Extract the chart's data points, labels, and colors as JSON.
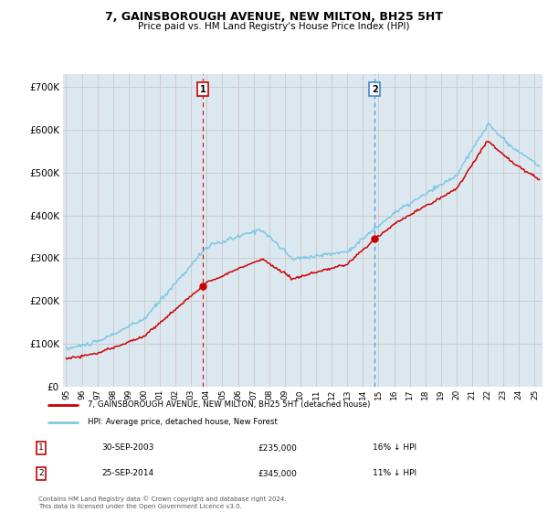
{
  "title": "7, GAINSBOROUGH AVENUE, NEW MILTON, BH25 5HT",
  "subtitle": "Price paid vs. HM Land Registry's House Price Index (HPI)",
  "hpi_label": "HPI: Average price, detached house, New Forest",
  "price_label": "7, GAINSBOROUGH AVENUE, NEW MILTON, BH25 5HT (detached house)",
  "sale1_date": "30-SEP-2003",
  "sale1_price": 235000,
  "sale1_note": "16% ↓ HPI",
  "sale2_date": "25-SEP-2014",
  "sale2_price": 345000,
  "sale2_note": "11% ↓ HPI",
  "sale1_x": 2003.75,
  "sale2_x": 2014.75,
  "ylim": [
    0,
    730000
  ],
  "xlim_start": 1994.8,
  "xlim_end": 2025.5,
  "hpi_color": "#7ec8e3",
  "price_color": "#cc0000",
  "grid_color": "#cccccc",
  "background_color": "#dce8f0",
  "footnote": "Contains HM Land Registry data © Crown copyright and database right 2024.\nThis data is licensed under the Open Government Licence v3.0.",
  "yticks": [
    0,
    100000,
    200000,
    300000,
    400000,
    500000,
    600000,
    700000
  ],
  "xticks": [
    1995,
    1996,
    1997,
    1998,
    1999,
    2000,
    2001,
    2002,
    2003,
    2004,
    2005,
    2006,
    2007,
    2008,
    2009,
    2010,
    2011,
    2012,
    2013,
    2014,
    2015,
    2016,
    2017,
    2018,
    2019,
    2020,
    2021,
    2022,
    2023,
    2024,
    2025
  ]
}
